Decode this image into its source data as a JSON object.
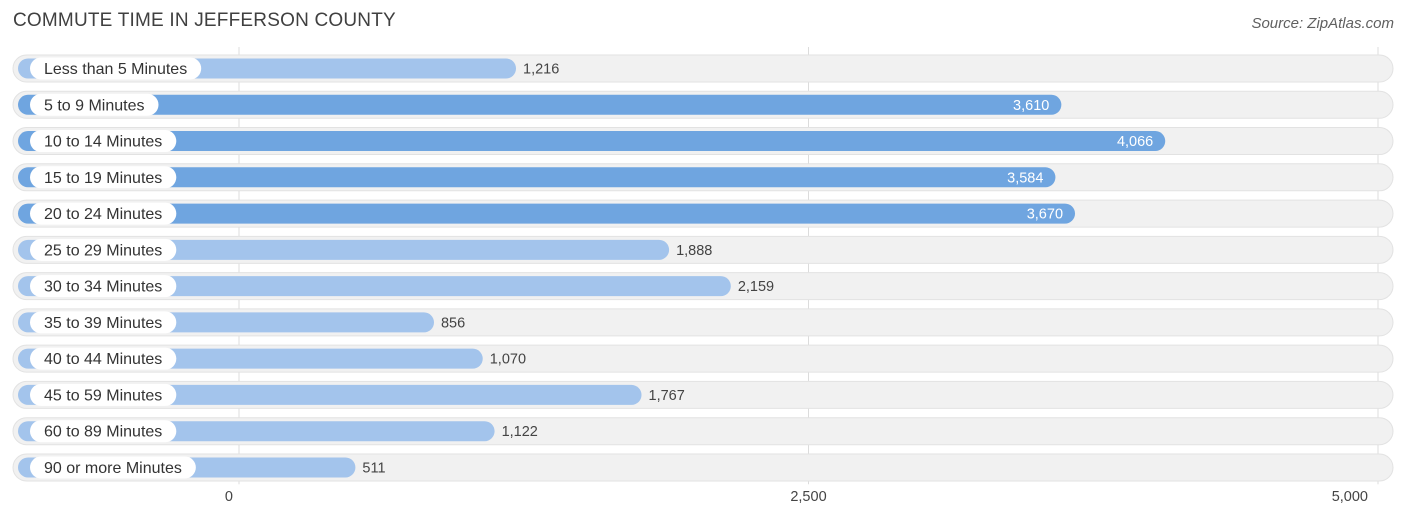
{
  "header": {
    "title": "COMMUTE TIME IN JEFFERSON COUNTY",
    "source": "Source: ZipAtlas.com"
  },
  "chart_data": {
    "type": "bar",
    "orientation": "horizontal",
    "title": "COMMUTE TIME IN JEFFERSON COUNTY",
    "categories": [
      "Less than 5 Minutes",
      "5 to 9 Minutes",
      "10 to 14 Minutes",
      "15 to 19 Minutes",
      "20 to 24 Minutes",
      "25 to 29 Minutes",
      "30 to 34 Minutes",
      "35 to 39 Minutes",
      "40 to 44 Minutes",
      "45 to 59 Minutes",
      "60 to 89 Minutes",
      "90 or more Minutes"
    ],
    "values": [
      1216,
      3610,
      4066,
      3584,
      3670,
      1888,
      2159,
      856,
      1070,
      1767,
      1122,
      511
    ],
    "value_labels": [
      "1,216",
      "3,610",
      "4,066",
      "3,584",
      "3,670",
      "1,888",
      "2,159",
      "856",
      "1,070",
      "1,767",
      "1,122",
      "511"
    ],
    "xlim": [
      0,
      5000
    ],
    "xticks": [
      0,
      2500,
      5000
    ],
    "xtick_labels": [
      "0",
      "2,500",
      "5,000"
    ],
    "grid": true,
    "colors": {
      "bar_strong": "#6fa5e0",
      "bar_light": "#a3c4ec",
      "track": "#f1f1f1",
      "track_border": "#e2e2e2",
      "value_inside": "#ffffff",
      "value_outside": "#444444"
    }
  }
}
